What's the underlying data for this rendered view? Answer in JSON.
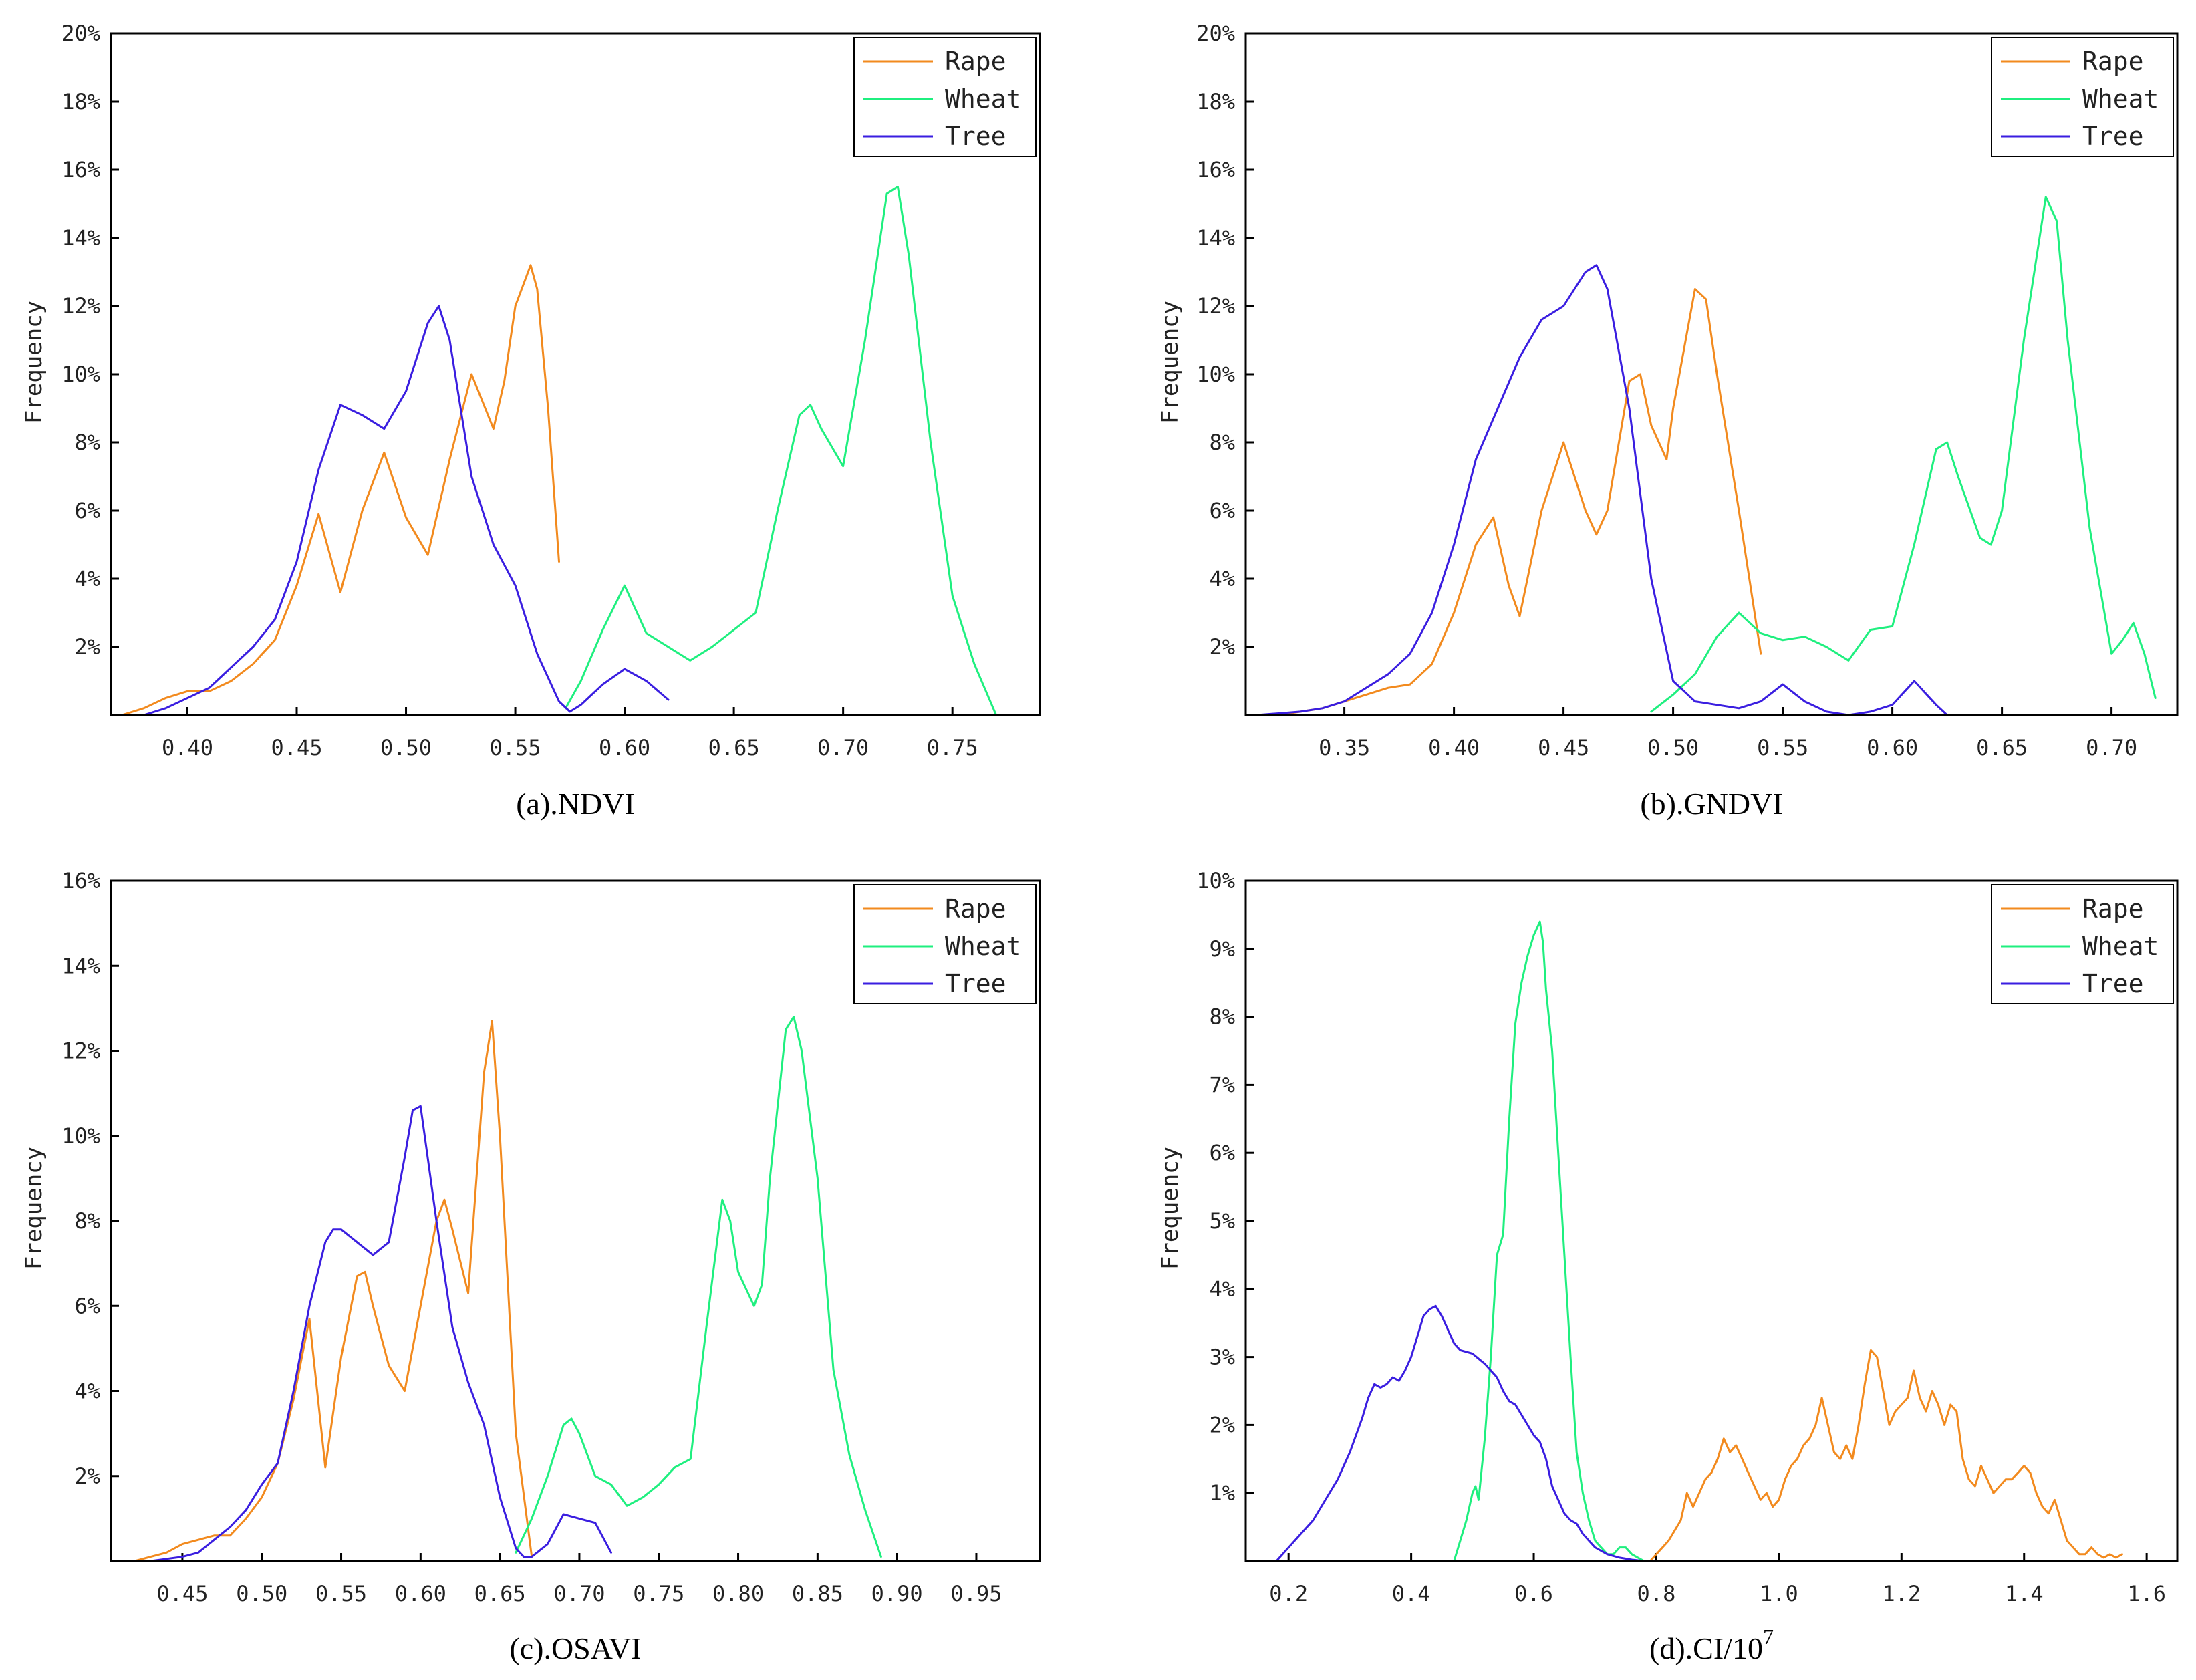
{
  "colors": {
    "rape": "#f28a1e",
    "wheat": "#1fef7f",
    "tree": "#3a1ee0"
  },
  "chart_data": [
    {
      "type": "line",
      "title": "(a).NDVI",
      "xlabel": "",
      "ylabel": "Frequency",
      "xlim": [
        0.365,
        0.79
      ],
      "ylim": [
        0,
        20
      ],
      "xticks": [
        0.4,
        0.45,
        0.5,
        0.55,
        0.6,
        0.65,
        0.7,
        0.75
      ],
      "xtick_labels": [
        "0.40",
        "0.45",
        "0.50",
        "0.55",
        "0.60",
        "0.65",
        "0.70",
        "0.75"
      ],
      "yticks": [
        2,
        4,
        6,
        8,
        10,
        12,
        14,
        16,
        18,
        20
      ],
      "ytick_labels": [
        "2%",
        "4%",
        "6%",
        "8%",
        "10%",
        "12%",
        "14%",
        "16%",
        "18%",
        "20%"
      ],
      "legend_position": "top-right",
      "series": [
        {
          "name": "Rape",
          "color_key": "rape",
          "x": [
            0.37,
            0.38,
            0.39,
            0.4,
            0.41,
            0.42,
            0.43,
            0.44,
            0.45,
            0.46,
            0.47,
            0.48,
            0.49,
            0.5,
            0.51,
            0.52,
            0.53,
            0.54,
            0.545,
            0.55,
            0.557,
            0.56,
            0.565,
            0.57
          ],
          "y": [
            0,
            0.2,
            0.5,
            0.7,
            0.7,
            1.0,
            1.5,
            2.2,
            3.8,
            5.9,
            3.6,
            6.0,
            7.7,
            5.8,
            4.7,
            7.5,
            10.0,
            8.4,
            9.8,
            12.0,
            13.2,
            12.5,
            9.0,
            4.5
          ]
        },
        {
          "name": "Wheat",
          "color_key": "wheat",
          "x": [
            0.573,
            0.58,
            0.59,
            0.6,
            0.61,
            0.62,
            0.63,
            0.64,
            0.65,
            0.66,
            0.67,
            0.68,
            0.685,
            0.69,
            0.7,
            0.71,
            0.72,
            0.725,
            0.73,
            0.74,
            0.75,
            0.76,
            0.77
          ],
          "y": [
            0.2,
            1.0,
            2.5,
            3.8,
            2.4,
            2.0,
            1.6,
            2.0,
            2.5,
            3.0,
            6.0,
            8.8,
            9.1,
            8.4,
            7.3,
            11.0,
            15.3,
            15.5,
            13.5,
            8.0,
            3.5,
            1.5,
            0
          ]
        },
        {
          "name": "Tree",
          "color_key": "tree",
          "x": [
            0.38,
            0.39,
            0.4,
            0.41,
            0.42,
            0.43,
            0.44,
            0.45,
            0.46,
            0.47,
            0.48,
            0.49,
            0.5,
            0.51,
            0.515,
            0.52,
            0.53,
            0.54,
            0.55,
            0.56,
            0.57,
            0.575,
            0.58,
            0.59,
            0.6,
            0.61,
            0.62
          ],
          "y": [
            0,
            0.2,
            0.5,
            0.8,
            1.4,
            2.0,
            2.8,
            4.5,
            7.2,
            9.1,
            8.8,
            8.4,
            9.5,
            11.5,
            12.0,
            11.0,
            7.0,
            5.0,
            3.8,
            1.8,
            0.4,
            0.1,
            0.3,
            0.9,
            1.35,
            1.0,
            0.45
          ]
        }
      ]
    },
    {
      "type": "line",
      "title": "(b).GNDVI",
      "xlabel": "",
      "ylabel": "Frequency",
      "xlim": [
        0.305,
        0.73
      ],
      "ylim": [
        0,
        20
      ],
      "xticks": [
        0.35,
        0.4,
        0.45,
        0.5,
        0.55,
        0.6,
        0.65,
        0.7
      ],
      "xtick_labels": [
        "0.35",
        "0.40",
        "0.45",
        "0.50",
        "0.55",
        "0.60",
        "0.65",
        "0.70"
      ],
      "yticks": [
        2,
        4,
        6,
        8,
        10,
        12,
        14,
        16,
        18,
        20
      ],
      "ytick_labels": [
        "2%",
        "4%",
        "6%",
        "8%",
        "10%",
        "12%",
        "14%",
        "16%",
        "18%",
        "20%"
      ],
      "legend_position": "top-right",
      "series": [
        {
          "name": "Rape",
          "color_key": "rape",
          "x": [
            0.32,
            0.33,
            0.34,
            0.35,
            0.36,
            0.37,
            0.38,
            0.39,
            0.4,
            0.41,
            0.418,
            0.425,
            0.43,
            0.44,
            0.45,
            0.46,
            0.465,
            0.47,
            0.48,
            0.485,
            0.49,
            0.497,
            0.5,
            0.51,
            0.515,
            0.52,
            0.53,
            0.54
          ],
          "y": [
            0,
            0.1,
            0.2,
            0.4,
            0.6,
            0.8,
            0.9,
            1.5,
            3.0,
            5.0,
            5.8,
            3.8,
            2.9,
            6.0,
            8.0,
            6.0,
            5.3,
            6.0,
            9.8,
            10.0,
            8.5,
            7.5,
            9.0,
            12.5,
            12.2,
            10.0,
            6.0,
            1.8
          ]
        },
        {
          "name": "Wheat",
          "color_key": "wheat",
          "x": [
            0.49,
            0.5,
            0.51,
            0.52,
            0.53,
            0.54,
            0.55,
            0.56,
            0.57,
            0.58,
            0.59,
            0.6,
            0.61,
            0.62,
            0.625,
            0.63,
            0.64,
            0.645,
            0.65,
            0.66,
            0.67,
            0.675,
            0.68,
            0.69,
            0.7,
            0.705,
            0.71,
            0.715,
            0.72
          ],
          "y": [
            0.1,
            0.6,
            1.2,
            2.3,
            3.0,
            2.4,
            2.2,
            2.3,
            2.0,
            1.6,
            2.5,
            2.6,
            5.0,
            7.8,
            8.0,
            7.0,
            5.2,
            5.0,
            6.0,
            11.0,
            15.2,
            14.5,
            11.0,
            5.5,
            1.8,
            2.2,
            2.7,
            1.8,
            0.5
          ]
        },
        {
          "name": "Tree",
          "color_key": "tree",
          "x": [
            0.31,
            0.32,
            0.33,
            0.34,
            0.35,
            0.36,
            0.37,
            0.38,
            0.39,
            0.4,
            0.41,
            0.42,
            0.43,
            0.44,
            0.45,
            0.46,
            0.465,
            0.47,
            0.48,
            0.49,
            0.5,
            0.51,
            0.52,
            0.53,
            0.54,
            0.55,
            0.56,
            0.57,
            0.58,
            0.59,
            0.6,
            0.61,
            0.62,
            0.625
          ],
          "y": [
            0,
            0.05,
            0.1,
            0.2,
            0.4,
            0.8,
            1.2,
            1.8,
            3.0,
            5.0,
            7.5,
            9.0,
            10.5,
            11.6,
            12.0,
            13.0,
            13.2,
            12.5,
            9.0,
            4.0,
            1.0,
            0.4,
            0.3,
            0.2,
            0.4,
            0.9,
            0.4,
            0.1,
            0,
            0.1,
            0.3,
            1.0,
            0.3,
            0
          ]
        }
      ]
    },
    {
      "type": "line",
      "title": "(c).OSAVI",
      "xlabel": "",
      "ylabel": "Frequency",
      "xlim": [
        0.405,
        0.99
      ],
      "ylim": [
        0,
        16
      ],
      "xticks": [
        0.45,
        0.5,
        0.55,
        0.6,
        0.65,
        0.7,
        0.75,
        0.8,
        0.85,
        0.9,
        0.95
      ],
      "xtick_labels": [
        "0.45",
        "0.50",
        "0.55",
        "0.60",
        "0.65",
        "0.70",
        "0.75",
        "0.80",
        "0.85",
        "0.90",
        "0.95"
      ],
      "yticks": [
        2,
        4,
        6,
        8,
        10,
        12,
        14,
        16
      ],
      "ytick_labels": [
        "2%",
        "4%",
        "6%",
        "8%",
        "10%",
        "12%",
        "14%",
        "16%"
      ],
      "legend_position": "top-right",
      "series": [
        {
          "name": "Rape",
          "color_key": "rape",
          "x": [
            0.42,
            0.43,
            0.44,
            0.45,
            0.46,
            0.47,
            0.48,
            0.49,
            0.5,
            0.51,
            0.52,
            0.53,
            0.54,
            0.55,
            0.56,
            0.565,
            0.57,
            0.58,
            0.59,
            0.6,
            0.61,
            0.615,
            0.62,
            0.63,
            0.64,
            0.645,
            0.65,
            0.66,
            0.67
          ],
          "y": [
            0,
            0.1,
            0.2,
            0.4,
            0.5,
            0.6,
            0.6,
            1.0,
            1.5,
            2.3,
            3.8,
            5.7,
            2.2,
            4.8,
            6.7,
            6.8,
            6.0,
            4.6,
            4.0,
            6.0,
            8.0,
            8.5,
            7.8,
            6.3,
            11.5,
            12.7,
            10.0,
            3.0,
            0.1
          ]
        },
        {
          "name": "Wheat",
          "color_key": "wheat",
          "x": [
            0.66,
            0.67,
            0.68,
            0.69,
            0.695,
            0.7,
            0.71,
            0.72,
            0.73,
            0.74,
            0.75,
            0.76,
            0.77,
            0.78,
            0.79,
            0.795,
            0.8,
            0.81,
            0.815,
            0.82,
            0.83,
            0.835,
            0.84,
            0.85,
            0.86,
            0.87,
            0.88,
            0.89
          ],
          "y": [
            0.2,
            1.0,
            2.0,
            3.2,
            3.35,
            3.0,
            2.0,
            1.8,
            1.3,
            1.5,
            1.8,
            2.2,
            2.4,
            5.5,
            8.5,
            8.0,
            6.8,
            6.0,
            6.5,
            9.0,
            12.5,
            12.8,
            12.0,
            9.0,
            4.5,
            2.5,
            1.2,
            0.1
          ]
        },
        {
          "name": "Tree",
          "color_key": "tree",
          "x": [
            0.43,
            0.44,
            0.45,
            0.46,
            0.47,
            0.48,
            0.49,
            0.5,
            0.51,
            0.52,
            0.53,
            0.54,
            0.545,
            0.55,
            0.56,
            0.57,
            0.58,
            0.59,
            0.595,
            0.6,
            0.61,
            0.62,
            0.63,
            0.64,
            0.65,
            0.66,
            0.665,
            0.67,
            0.68,
            0.69,
            0.7,
            0.71,
            0.72
          ],
          "y": [
            0,
            0.05,
            0.1,
            0.2,
            0.5,
            0.8,
            1.2,
            1.8,
            2.3,
            4.0,
            6.0,
            7.5,
            7.8,
            7.8,
            7.5,
            7.2,
            7.5,
            9.5,
            10.6,
            10.7,
            8.0,
            5.5,
            4.2,
            3.2,
            1.5,
            0.3,
            0.1,
            0.1,
            0.4,
            1.1,
            1.0,
            0.9,
            0.2
          ]
        }
      ]
    },
    {
      "type": "line",
      "title": "(d).CI/10",
      "title_superscript": "7",
      "xlabel": "",
      "ylabel": "Frequency",
      "xlim": [
        0.13,
        1.65
      ],
      "ylim": [
        0,
        10
      ],
      "xticks": [
        0.2,
        0.4,
        0.6,
        0.8,
        1.0,
        1.2,
        1.4,
        1.6
      ],
      "xtick_labels": [
        "0.2",
        "0.4",
        "0.6",
        "0.8",
        "1.0",
        "1.2",
        "1.4",
        "1.6"
      ],
      "yticks": [
        1,
        2,
        3,
        4,
        5,
        6,
        7,
        8,
        9,
        10
      ],
      "ytick_labels": [
        "1%",
        "2%",
        "3%",
        "4%",
        "5%",
        "6%",
        "7%",
        "8%",
        "9%",
        "10%"
      ],
      "legend_position": "top-right",
      "series": [
        {
          "name": "Rape",
          "color_key": "rape",
          "x": [
            0.79,
            0.8,
            0.82,
            0.84,
            0.85,
            0.86,
            0.87,
            0.88,
            0.89,
            0.9,
            0.91,
            0.92,
            0.93,
            0.94,
            0.95,
            0.96,
            0.97,
            0.98,
            0.99,
            1.0,
            1.01,
            1.02,
            1.03,
            1.04,
            1.05,
            1.06,
            1.07,
            1.08,
            1.09,
            1.1,
            1.11,
            1.12,
            1.13,
            1.14,
            1.15,
            1.16,
            1.17,
            1.18,
            1.19,
            1.2,
            1.21,
            1.22,
            1.23,
            1.24,
            1.25,
            1.26,
            1.27,
            1.28,
            1.29,
            1.3,
            1.31,
            1.32,
            1.33,
            1.34,
            1.35,
            1.36,
            1.37,
            1.38,
            1.39,
            1.4,
            1.41,
            1.42,
            1.43,
            1.44,
            1.45,
            1.46,
            1.47,
            1.48,
            1.49,
            1.5,
            1.51,
            1.52,
            1.53,
            1.54,
            1.55,
            1.56
          ],
          "y": [
            0,
            0.1,
            0.3,
            0.6,
            1.0,
            0.8,
            1.0,
            1.2,
            1.3,
            1.5,
            1.8,
            1.6,
            1.7,
            1.5,
            1.3,
            1.1,
            0.9,
            1.0,
            0.8,
            0.9,
            1.2,
            1.4,
            1.5,
            1.7,
            1.8,
            2.0,
            2.4,
            2.0,
            1.6,
            1.5,
            1.7,
            1.5,
            2.0,
            2.6,
            3.1,
            3.0,
            2.5,
            2.0,
            2.2,
            2.3,
            2.4,
            2.8,
            2.4,
            2.2,
            2.5,
            2.3,
            2.0,
            2.3,
            2.2,
            1.5,
            1.2,
            1.1,
            1.4,
            1.2,
            1.0,
            1.1,
            1.2,
            1.2,
            1.3,
            1.4,
            1.3,
            1.0,
            0.8,
            0.7,
            0.9,
            0.6,
            0.3,
            0.2,
            0.1,
            0.1,
            0.2,
            0.1,
            0.05,
            0.1,
            0.05,
            0.1
          ]
        },
        {
          "name": "Wheat",
          "color_key": "wheat",
          "x": [
            0.47,
            0.48,
            0.49,
            0.5,
            0.505,
            0.51,
            0.52,
            0.53,
            0.54,
            0.55,
            0.56,
            0.57,
            0.58,
            0.59,
            0.6,
            0.61,
            0.615,
            0.62,
            0.63,
            0.64,
            0.65,
            0.66,
            0.67,
            0.68,
            0.69,
            0.7,
            0.71,
            0.72,
            0.73,
            0.74,
            0.75,
            0.76,
            0.77,
            0.78
          ],
          "y": [
            0,
            0.3,
            0.6,
            1.0,
            1.1,
            0.9,
            1.8,
            3.0,
            4.5,
            4.8,
            6.5,
            7.9,
            8.5,
            8.9,
            9.2,
            9.4,
            9.1,
            8.4,
            7.5,
            6.0,
            4.5,
            3.0,
            1.6,
            1.0,
            0.6,
            0.3,
            0.2,
            0.1,
            0.1,
            0.2,
            0.2,
            0.1,
            0.05,
            0
          ]
        },
        {
          "name": "Tree",
          "color_key": "tree",
          "x": [
            0.18,
            0.2,
            0.22,
            0.24,
            0.26,
            0.28,
            0.3,
            0.32,
            0.33,
            0.34,
            0.35,
            0.36,
            0.37,
            0.38,
            0.39,
            0.4,
            0.41,
            0.42,
            0.43,
            0.44,
            0.45,
            0.46,
            0.47,
            0.48,
            0.5,
            0.52,
            0.54,
            0.55,
            0.56,
            0.57,
            0.58,
            0.59,
            0.6,
            0.61,
            0.62,
            0.63,
            0.64,
            0.65,
            0.66,
            0.67,
            0.68,
            0.69,
            0.7,
            0.72,
            0.74,
            0.76,
            0.78
          ],
          "y": [
            0,
            0.2,
            0.4,
            0.6,
            0.9,
            1.2,
            1.6,
            2.1,
            2.4,
            2.6,
            2.55,
            2.6,
            2.7,
            2.65,
            2.8,
            3.0,
            3.3,
            3.6,
            3.7,
            3.75,
            3.6,
            3.4,
            3.2,
            3.1,
            3.05,
            2.9,
            2.7,
            2.5,
            2.35,
            2.3,
            2.15,
            2.0,
            1.85,
            1.75,
            1.5,
            1.1,
            0.9,
            0.7,
            0.6,
            0.55,
            0.4,
            0.3,
            0.2,
            0.1,
            0.05,
            0.02,
            0
          ]
        }
      ]
    }
  ]
}
